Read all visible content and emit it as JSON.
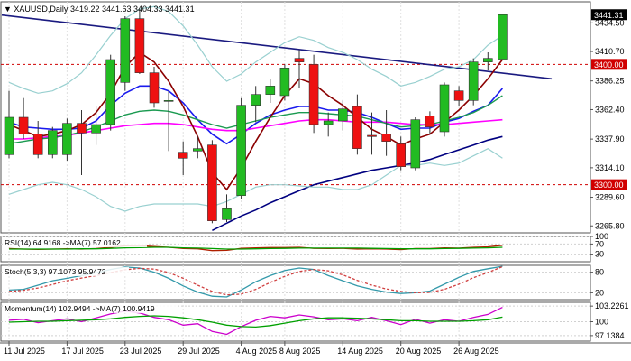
{
  "chart_data": [
    {
      "type": "candlestick",
      "panel": "main",
      "header": {
        "symbol": "XAUUSD,Daily",
        "ohlc": "3419.22 3441.63 3404.33 3441.31"
      },
      "ylim": [
        3260,
        3452
      ],
      "y_ticks": [
        "3434.50",
        "3410.70",
        "3386.25",
        "3362.40",
        "3337.90",
        "3314.10",
        "3289.60",
        "3265.80"
      ],
      "y_tick_values": [
        3434.5,
        3410.7,
        3386.25,
        3362.4,
        3337.9,
        3314.1,
        3289.6,
        3265.8
      ],
      "last_price_label": "3441.31",
      "levels": [
        {
          "label": "3400.00",
          "value": 3400,
          "color": "#d00000"
        },
        {
          "label": "3300.00",
          "value": 3300,
          "color": "#d00000"
        }
      ],
      "x_labels": [
        "11 Jul 2025",
        "17 Jul 2025",
        "23 Jul 2025",
        "29 Jul 2025",
        "4 Aug 2025",
        "8 Aug 2025",
        "14 Aug 2025",
        "20 Aug 2025",
        "26 Aug 2025"
      ],
      "x_label_bars": [
        0,
        4,
        8,
        12,
        16,
        19,
        23,
        27,
        31
      ],
      "candles": [
        {
          "o": 3325,
          "h": 3378,
          "l": 3322,
          "c": 3356
        },
        {
          "o": 3356,
          "h": 3372,
          "l": 3338,
          "c": 3342
        },
        {
          "o": 3342,
          "h": 3353,
          "l": 3322,
          "c": 3325
        },
        {
          "o": 3325,
          "h": 3348,
          "l": 3322,
          "c": 3345
        },
        {
          "o": 3325,
          "h": 3355,
          "l": 3320,
          "c": 3351
        },
        {
          "o": 3351,
          "h": 3362,
          "l": 3308,
          "c": 3343
        },
        {
          "o": 3343,
          "h": 3365,
          "l": 3333,
          "c": 3350
        },
        {
          "o": 3350,
          "h": 3408,
          "l": 3345,
          "c": 3404
        },
        {
          "o": 3385,
          "h": 3440,
          "l": 3378,
          "c": 3438
        },
        {
          "o": 3438,
          "h": 3446,
          "l": 3392,
          "c": 3393
        },
        {
          "o": 3393,
          "h": 3398,
          "l": 3364,
          "c": 3368
        },
        {
          "o": 3370,
          "h": 3378,
          "l": 3328,
          "c": 3370
        },
        {
          "o": 3327,
          "h": 3336,
          "l": 3308,
          "c": 3322
        },
        {
          "o": 3328,
          "h": 3340,
          "l": 3322,
          "c": 3330
        },
        {
          "o": 3333,
          "h": 3337,
          "l": 3268,
          "c": 3270
        },
        {
          "o": 3271,
          "h": 3292,
          "l": 3269,
          "c": 3280
        },
        {
          "o": 3291,
          "h": 3372,
          "l": 3288,
          "c": 3366
        },
        {
          "o": 3366,
          "h": 3382,
          "l": 3352,
          "c": 3375
        },
        {
          "o": 3375,
          "h": 3388,
          "l": 3368,
          "c": 3382
        },
        {
          "o": 3374,
          "h": 3400,
          "l": 3370,
          "c": 3397
        },
        {
          "o": 3405,
          "h": 3412,
          "l": 3380,
          "c": 3402
        },
        {
          "o": 3400,
          "h": 3408,
          "l": 3343,
          "c": 3350
        },
        {
          "o": 3350,
          "h": 3360,
          "l": 3340,
          "c": 3353
        },
        {
          "o": 3353,
          "h": 3370,
          "l": 3345,
          "c": 3363
        },
        {
          "o": 3365,
          "h": 3375,
          "l": 3325,
          "c": 3330
        },
        {
          "o": 3341,
          "h": 3360,
          "l": 3325,
          "c": 3340
        },
        {
          "o": 3342,
          "h": 3362,
          "l": 3324,
          "c": 3336
        },
        {
          "o": 3334,
          "h": 3340,
          "l": 3312,
          "c": 3315
        },
        {
          "o": 3314,
          "h": 3356,
          "l": 3312,
          "c": 3354
        },
        {
          "o": 3357,
          "h": 3361,
          "l": 3342,
          "c": 3348
        },
        {
          "o": 3344,
          "h": 3385,
          "l": 3340,
          "c": 3383
        },
        {
          "o": 3378,
          "h": 3382,
          "l": 3365,
          "c": 3370
        },
        {
          "o": 3370,
          "h": 3405,
          "l": 3366,
          "c": 3402
        },
        {
          "o": 3402,
          "h": 3410,
          "l": 3395,
          "c": 3405
        },
        {
          "o": 3404.33,
          "h": 3441.63,
          "l": 3404.33,
          "c": 3441.31
        }
      ],
      "lines": [
        {
          "color": "#000080",
          "width": 1.6,
          "values": [
            null,
            null,
            null,
            null,
            null,
            null,
            null,
            null,
            null,
            null,
            null,
            null,
            null,
            null,
            3262,
            3268,
            3274,
            3279,
            3285,
            3290,
            3295,
            3300,
            3303,
            3306,
            3309,
            3312,
            3314,
            3316,
            3318,
            3321,
            3325,
            3329,
            3333,
            3337,
            3340
          ]
        },
        {
          "color": "#1a1aee",
          "width": 1.6,
          "values": [
            3352,
            3348,
            3347,
            3346,
            3346,
            3347,
            3353,
            3366,
            3376,
            3382,
            3382,
            3378,
            3368,
            3354,
            3342,
            3334,
            3342,
            3351,
            3358,
            3362,
            3365,
            3365,
            3362,
            3362,
            3360,
            3356,
            3351,
            3346,
            3347,
            3347,
            3352,
            3355,
            3361,
            3366,
            3380
          ]
        },
        {
          "color": "#ff00ff",
          "width": 1.6,
          "values": [
            3338,
            3338,
            3339,
            3340,
            3341,
            3343,
            3345,
            3347,
            3349,
            3350,
            3351,
            3351,
            3350,
            3348,
            3346,
            3345,
            3345,
            3347,
            3349,
            3351,
            3353,
            3354,
            3354,
            3353,
            3352,
            3352,
            3352,
            3351,
            3350,
            3350,
            3350,
            3351,
            3352,
            3353,
            3354
          ]
        },
        {
          "color": "#1a9a50",
          "width": 1.4,
          "values": [
            3334,
            3336,
            3338,
            3339,
            3341,
            3344,
            3348,
            3353,
            3358,
            3361,
            3362,
            3361,
            3358,
            3354,
            3350,
            3347,
            3350,
            3353,
            3356,
            3358,
            3360,
            3360,
            3359,
            3358,
            3357,
            3354,
            3351,
            3348,
            3349,
            3350,
            3353,
            3356,
            3360,
            3366,
            3374
          ]
        },
        {
          "color": "#8b0000",
          "width": 1.6,
          "values": [
            3350,
            3345,
            3340,
            3342,
            3345,
            3350,
            3360,
            3376,
            3398,
            3410,
            3402,
            3386,
            3365,
            3340,
            3310,
            3296,
            3314,
            3336,
            3356,
            3374,
            3388,
            3384,
            3374,
            3366,
            3356,
            3346,
            3340,
            3333,
            3338,
            3342,
            3352,
            3362,
            3374,
            3388,
            3404
          ]
        },
        {
          "color": "#99d0d0",
          "width": 1.2,
          "values": [
            3385,
            3380,
            3376,
            3378,
            3384,
            3393,
            3408,
            3424,
            3438,
            3446,
            3448,
            3444,
            3432,
            3416,
            3398,
            3386,
            3392,
            3402,
            3410,
            3418,
            3423,
            3420,
            3414,
            3410,
            3404,
            3396,
            3390,
            3382,
            3385,
            3390,
            3396,
            3398,
            3404,
            3416,
            3424
          ]
        },
        {
          "color": "#99d0d0",
          "width": 1.2,
          "values": [
            3292,
            3296,
            3300,
            3302,
            3300,
            3296,
            3290,
            3282,
            3278,
            3282,
            3284,
            3284,
            3284,
            3284,
            3282,
            3286,
            3292,
            3298,
            3300,
            3300,
            3299,
            3298,
            3298,
            3296,
            3296,
            3300,
            3308,
            3316,
            3316,
            3318,
            3316,
            3318,
            3324,
            3330,
            3322
          ]
        }
      ]
    },
    {
      "type": "line",
      "panel": "rsi",
      "label": "RSI(14) 64.9168  ->MA(7) 57.0162",
      "ylim": [
        0,
        100
      ],
      "y_ticks": [
        "100",
        "70",
        "30"
      ],
      "y_tick_values": [
        100,
        70,
        30
      ],
      "series": [
        {
          "color": "#b02000",
          "values": [
            52,
            50,
            49,
            50,
            51,
            50,
            52,
            57,
            63,
            64,
            60,
            57,
            52,
            51,
            44,
            45,
            53,
            55,
            56,
            56,
            57,
            53,
            52,
            53,
            50,
            51,
            50,
            48,
            52,
            52,
            55,
            54,
            57,
            59,
            65
          ]
        },
        {
          "color": "#00a000",
          "values": [
            50,
            50,
            50,
            50,
            50,
            51,
            51,
            53,
            55,
            56,
            57,
            57,
            55,
            54,
            52,
            50,
            50,
            51,
            52,
            53,
            54,
            54,
            54,
            54,
            54,
            53,
            52,
            51,
            51,
            51,
            52,
            53,
            54,
            55,
            57
          ]
        }
      ]
    },
    {
      "type": "line",
      "panel": "stoch",
      "label": "Stoch(5,3,3) 97.1073 95.9472",
      "ylim": [
        0,
        100
      ],
      "y_ticks": [
        "80",
        "20"
      ],
      "y_tick_values": [
        80,
        20
      ],
      "series": [
        {
          "color": "#3399aa",
          "values": [
            28,
            30,
            42,
            55,
            62,
            70,
            78,
            88,
            95,
            92,
            80,
            62,
            40,
            22,
            10,
            8,
            28,
            52,
            70,
            85,
            92,
            88,
            70,
            55,
            40,
            30,
            22,
            18,
            20,
            25,
            45,
            65,
            82,
            90,
            97
          ]
        },
        {
          "color": "#d04040",
          "dash": "3,2",
          "values": [
            24,
            27,
            34,
            44,
            55,
            63,
            70,
            79,
            87,
            91,
            89,
            79,
            62,
            42,
            24,
            14,
            16,
            30,
            50,
            68,
            82,
            88,
            84,
            72,
            56,
            42,
            31,
            24,
            20,
            21,
            30,
            45,
            64,
            79,
            96
          ]
        }
      ]
    },
    {
      "type": "line",
      "panel": "momentum",
      "label": "Momentum(14) 102.9494  ->MA(7) 100.9419",
      "ylim": [
        96.0,
        104.0
      ],
      "y_ticks": [
        "103.2261",
        "100",
        "97.1384"
      ],
      "y_tick_values": [
        103.2261,
        100,
        97.1384
      ],
      "series": [
        {
          "color": "#cc00cc",
          "values": [
            100.3,
            100.5,
            99.8,
            100.2,
            100.6,
            100.0,
            100.8,
            101.6,
            102.2,
            101.8,
            100.9,
            100.4,
            99.3,
            99.6,
            98.0,
            97.4,
            99.0,
            100.3,
            101.1,
            100.8,
            101.4,
            101.0,
            100.4,
            100.6,
            100.2,
            100.9,
            100.2,
            99.4,
            100.5,
            99.7,
            100.4,
            100.1,
            100.9,
            101.5,
            102.95
          ]
        },
        {
          "color": "#00a000",
          "values": [
            99.9,
            100.0,
            100.1,
            100.1,
            100.2,
            100.3,
            100.4,
            100.6,
            100.9,
            101.1,
            101.2,
            101.1,
            100.8,
            100.4,
            99.9,
            99.3,
            99.0,
            98.9,
            99.2,
            99.7,
            100.2,
            100.6,
            100.8,
            100.8,
            100.7,
            100.6,
            100.4,
            100.2,
            100.2,
            100.1,
            100.1,
            100.1,
            100.2,
            100.4,
            100.94
          ]
        }
      ]
    }
  ]
}
